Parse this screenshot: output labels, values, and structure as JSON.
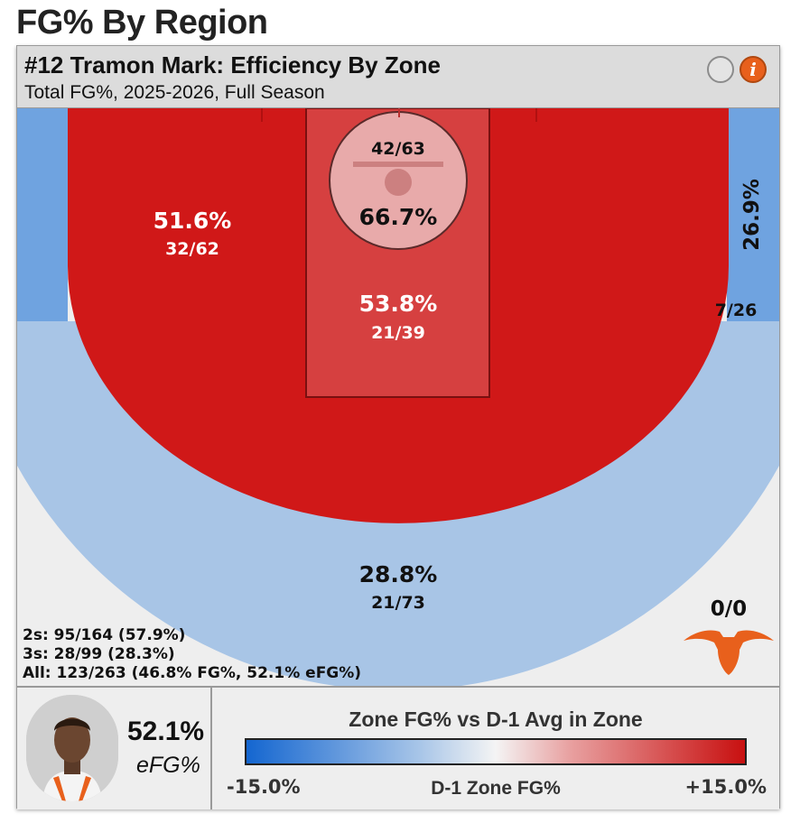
{
  "page_title": "FG% By Region",
  "card": {
    "title": "#12 Tramon Mark: Efficiency By Zone",
    "subtitle": "Total FG%, 2025-2026, Full Season"
  },
  "summary": {
    "twos": "2s: 95/164 (57.9%)",
    "threes": "3s: 28/99 (28.3%)",
    "all": "All: 123/263 (46.8% FG%, 52.1% eFG%)"
  },
  "player": {
    "efg_value": "52.1%",
    "efg_label": "eFG%"
  },
  "legend": {
    "title": "Zone FG% vs D-1 Avg in Zone",
    "min": "-15.0%",
    "mid": "D-1 Zone FG%",
    "max": "+15.0%",
    "colors": {
      "low": "#1466d0",
      "mid": "#f4f4f4",
      "high": "#c81010"
    }
  },
  "logo_icon": "longhorn-logo-icon",
  "chart_data": {
    "type": "heatmap",
    "zones": [
      {
        "zone": "Rim",
        "pct": "66.7%",
        "made": 42,
        "att": 63,
        "frac": "42/63",
        "color": "#e8aaaa"
      },
      {
        "zone": "Paint",
        "pct": "53.8%",
        "made": 21,
        "att": 39,
        "frac": "21/39",
        "color": "#d64040"
      },
      {
        "zone": "Midrange",
        "pct": "51.6%",
        "made": 32,
        "att": 62,
        "frac": "32/62",
        "color": "#d01818"
      },
      {
        "zone": "Left Corner 3",
        "pct": "",
        "frac": "",
        "color": "#6fa3e0"
      },
      {
        "zone": "Right Corner 3",
        "pct": "26.9%",
        "made": 7,
        "att": 26,
        "frac": "7/26",
        "color": "#6fa3e0"
      },
      {
        "zone": "Above the Break 3",
        "pct": "28.8%",
        "made": 21,
        "att": 73,
        "frac": "21/73",
        "color": "#a8c5e6"
      },
      {
        "zone": "Long 3",
        "pct": "",
        "made": 0,
        "att": 0,
        "frac": "0/0",
        "color": "#eeeeee"
      }
    ]
  }
}
